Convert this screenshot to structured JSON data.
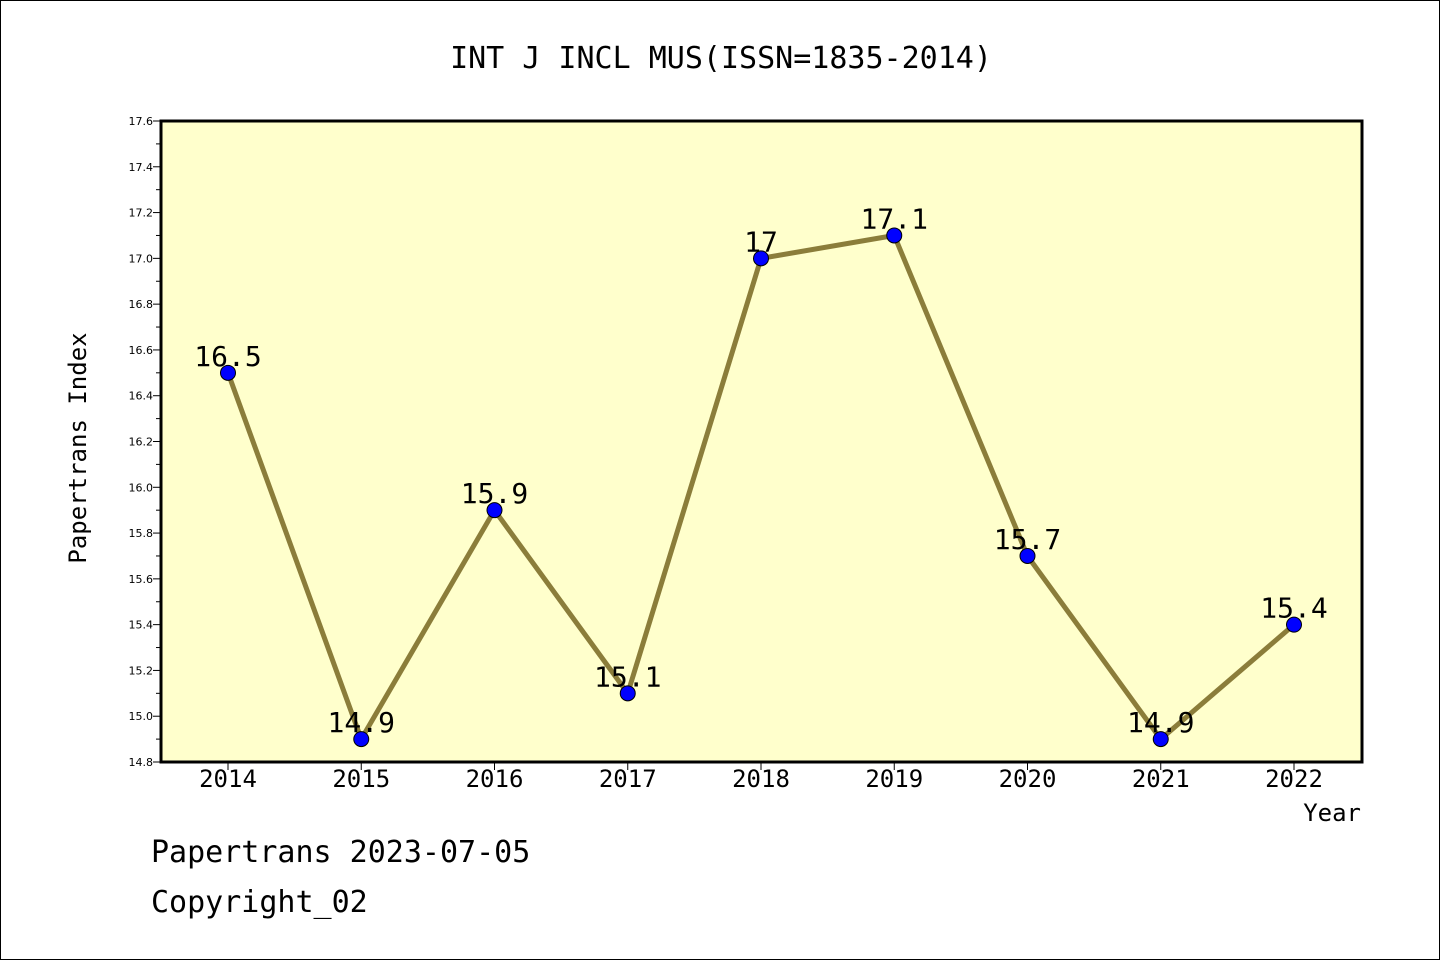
{
  "chart_data": {
    "type": "line",
    "title": "INT J INCL MUS(ISSN=1835-2014)",
    "xlabel": "Year",
    "ylabel": "Papertrans Index",
    "x": [
      "2014",
      "2015",
      "2016",
      "2017",
      "2018",
      "2019",
      "2020",
      "2021",
      "2022"
    ],
    "series": [
      {
        "values": [
          16.5,
          14.9,
          15.9,
          15.1,
          17.0,
          17.1,
          15.7,
          14.9,
          15.4
        ],
        "labels": [
          "16.5",
          "14.9",
          "15.9",
          "15.1",
          "17",
          "17.1",
          "15.7",
          "14.9",
          "15.4"
        ]
      }
    ],
    "ylim": [
      14.8,
      17.6
    ],
    "yticks": [
      "14.8",
      "15.0",
      "15.2",
      "15.4",
      "15.6",
      "15.8",
      "16.0",
      "16.2",
      "16.4",
      "16.6",
      "16.8",
      "17.0",
      "17.2",
      "17.4",
      "17.6"
    ],
    "grid": false,
    "colors": {
      "plot_bg": "#ffffcc",
      "line": "#8b7d3a",
      "marker": "#0000ff"
    }
  },
  "footer": {
    "line1": "Papertrans 2023-07-05",
    "line2": "Copyright_02"
  }
}
